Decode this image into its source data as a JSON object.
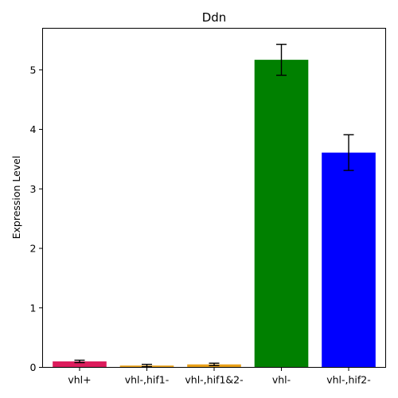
{
  "chart_data": {
    "type": "bar",
    "title": "Ddn",
    "xlabel": "",
    "ylabel": "Expression Level",
    "categories": [
      "vhl+",
      "vhl-,hif1-",
      "vhl-,hif1&2-",
      "vhl-",
      "vhl-,hif2-"
    ],
    "values": [
      0.1,
      0.03,
      0.05,
      5.17,
      3.61
    ],
    "errors": [
      0.02,
      0.02,
      0.02,
      0.26,
      0.3
    ],
    "colors": [
      "#dc1c5c",
      "#e9a11a",
      "#e9a11a",
      "#008000",
      "#0000ff"
    ],
    "ylim": [
      0,
      5.7
    ],
    "yticks": [
      "0",
      "1",
      "2",
      "3",
      "4",
      "5"
    ],
    "grid": false,
    "legend": "none"
  }
}
